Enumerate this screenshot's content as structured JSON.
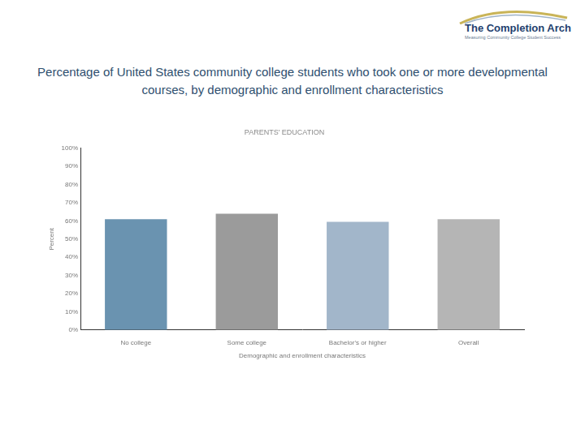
{
  "page": {
    "heading": "Percentage of United States community college students who took one or more developmental courses, by demographic and enrollment characteristics",
    "logo_name": "The Completion Arch",
    "logo_tagline": "Measuring Community College Student Success"
  },
  "chart_data": {
    "type": "bar",
    "title": "PARENTS' EDUCATION",
    "x_label": "Demographic and enrollment characteristics",
    "y_label": "Percent",
    "categories": [
      "No college",
      "Some college",
      "Bachelor's or higher",
      "Overall"
    ],
    "values": [
      61,
      64,
      59.5,
      61
    ],
    "colors": [
      "#6a93b0",
      "#9b9b9b",
      "#a2b6ca",
      "#b5b5b5"
    ],
    "ylim": [
      0,
      100
    ],
    "yticks": [
      {
        "value": 0,
        "label": "0%"
      },
      {
        "value": 10,
        "label": "10%"
      },
      {
        "value": 20,
        "label": "20%"
      },
      {
        "value": 30,
        "label": "30%"
      },
      {
        "value": 40,
        "label": "40%"
      },
      {
        "value": 50,
        "label": "50%"
      },
      {
        "value": 60,
        "label": "60%"
      },
      {
        "value": 70,
        "label": "70%"
      },
      {
        "value": 80,
        "label": "80%"
      },
      {
        "value": 90,
        "label": "90%"
      },
      {
        "value": 100,
        "label": "100%"
      }
    ],
    "grid": false
  }
}
